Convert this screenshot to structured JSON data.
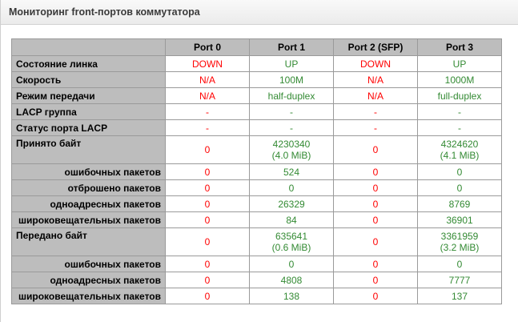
{
  "panel": {
    "title": "Мониторинг front-портов коммутатора"
  },
  "colors": {
    "down_red": "#ff0000",
    "up_green": "#338a33",
    "cell_gray": "#bdbdbd"
  },
  "table": {
    "ports": [
      {
        "label": "Port 0",
        "status": "down"
      },
      {
        "label": "Port 1",
        "status": "up"
      },
      {
        "label": "Port 2 (SFP)",
        "status": "down"
      },
      {
        "label": "Port 3",
        "status": "up"
      }
    ],
    "rows": [
      {
        "label": "Состояние линка",
        "indent": false,
        "tall": false,
        "values": [
          "DOWN",
          "UP",
          "DOWN",
          "UP"
        ]
      },
      {
        "label": "Скорость",
        "indent": false,
        "tall": false,
        "values": [
          "N/A",
          "100M",
          "N/A",
          "1000M"
        ]
      },
      {
        "label": "Режим передачи",
        "indent": false,
        "tall": false,
        "values": [
          "N/A",
          "half-duplex",
          "N/A",
          "full-duplex"
        ]
      },
      {
        "label": "LACP группа",
        "indent": false,
        "tall": false,
        "values": [
          "-",
          "-",
          "-",
          "-"
        ]
      },
      {
        "label": "Статус порта LACP",
        "indent": false,
        "tall": false,
        "values": [
          "-",
          "-",
          "-",
          "-"
        ]
      },
      {
        "label": "Принято байт",
        "indent": false,
        "tall": true,
        "values": [
          [
            "0"
          ],
          [
            "4230340",
            "(4.0 MiB)"
          ],
          [
            "0"
          ],
          [
            "4324620",
            "(4.1 MiB)"
          ]
        ]
      },
      {
        "label": "ошибочных пакетов",
        "indent": true,
        "tall": false,
        "values": [
          "0",
          "524",
          "0",
          "0"
        ]
      },
      {
        "label": "отброшено пакетов",
        "indent": true,
        "tall": false,
        "values": [
          "0",
          "0",
          "0",
          "0"
        ]
      },
      {
        "label": "одноадресных пакетов",
        "indent": true,
        "tall": false,
        "values": [
          "0",
          "26329",
          "0",
          "8769"
        ]
      },
      {
        "label": "широковещательных пакетов",
        "indent": true,
        "tall": false,
        "values": [
          "0",
          "84",
          "0",
          "36901"
        ]
      },
      {
        "label": "Передано байт",
        "indent": false,
        "tall": true,
        "values": [
          [
            "0"
          ],
          [
            "635641",
            "(0.6 MiB)"
          ],
          [
            "0"
          ],
          [
            "3361959",
            "(3.2 MiB)"
          ]
        ]
      },
      {
        "label": "ошибочных пакетов",
        "indent": true,
        "tall": false,
        "values": [
          "0",
          "0",
          "0",
          "0"
        ]
      },
      {
        "label": "одноадресных пакетов",
        "indent": true,
        "tall": false,
        "values": [
          "0",
          "4808",
          "0",
          "7777"
        ]
      },
      {
        "label": "широковещательных пакетов",
        "indent": true,
        "tall": false,
        "values": [
          "0",
          "138",
          "0",
          "137"
        ]
      }
    ]
  }
}
